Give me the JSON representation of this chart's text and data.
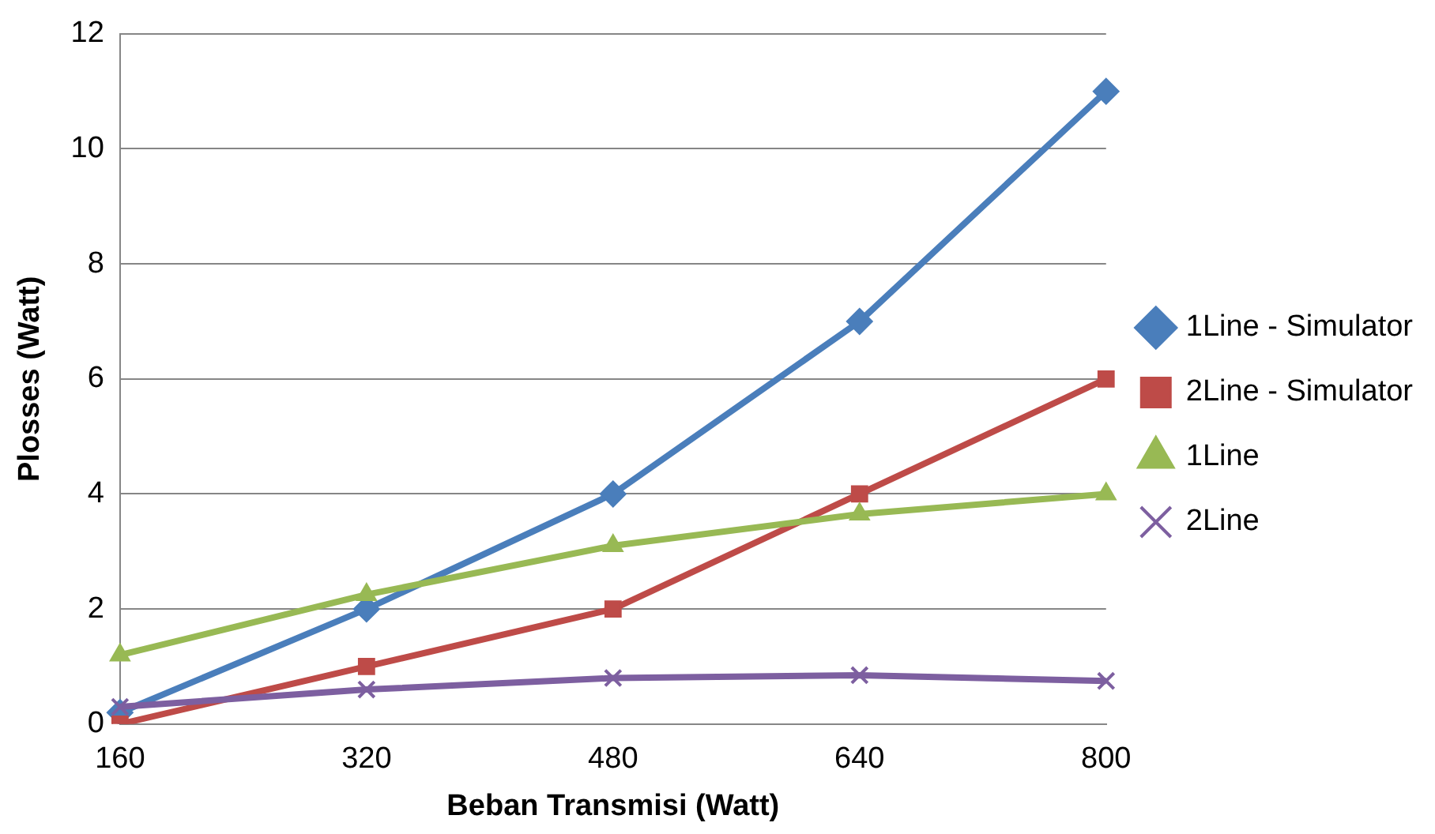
{
  "chart_data": {
    "type": "line",
    "xlabel": "Beban Transmisi (Watt)",
    "ylabel": "Plosses (Watt)",
    "categories": [
      "160",
      "320",
      "480",
      "640",
      "800"
    ],
    "series": [
      {
        "name": "1Line - Simulator",
        "color": "#4a7ebb",
        "marker": "diamond",
        "values": [
          0.2,
          2,
          4,
          7,
          11
        ]
      },
      {
        "name": "2Line - Simulator",
        "color": "#be4b48",
        "marker": "square",
        "values": [
          0,
          1,
          2,
          4,
          6
        ]
      },
      {
        "name": "1Line",
        "color": "#98b954",
        "marker": "triangle",
        "values": [
          1.2,
          2.25,
          3.1,
          3.65,
          4.0
        ]
      },
      {
        "name": "2Line",
        "color": "#7d5fa0",
        "marker": "cross",
        "values": [
          0.3,
          0.6,
          0.8,
          0.85,
          0.75
        ]
      }
    ],
    "ylim": [
      0,
      12
    ],
    "yticks": [
      0,
      2,
      4,
      6,
      8,
      10,
      12
    ],
    "grid": "y",
    "legend": "right",
    "line_style": "solid"
  }
}
